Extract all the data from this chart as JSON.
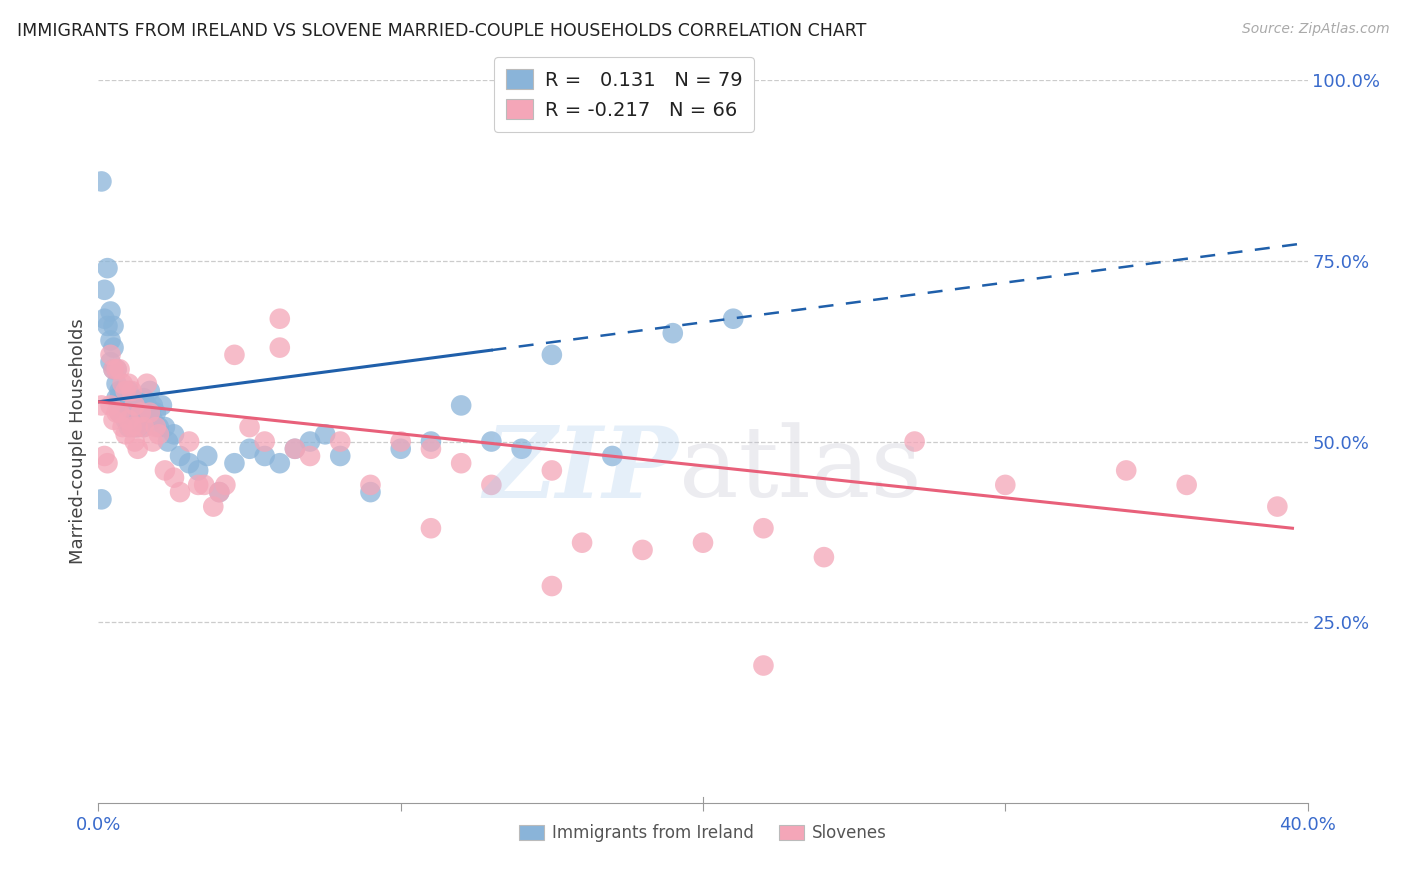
{
  "title": "IMMIGRANTS FROM IRELAND VS SLOVENE MARRIED-COUPLE HOUSEHOLDS CORRELATION CHART",
  "source": "Source: ZipAtlas.com",
  "ylabel": "Married-couple Households",
  "xmin": 0.0,
  "xmax": 0.4,
  "ymin": 0.0,
  "ymax": 1.0,
  "blue_color": "#8ab4d9",
  "pink_color": "#f4a6b8",
  "line_blue": "#1f5faa",
  "line_pink": "#e8607a",
  "legend_label1": "Immigrants from Ireland",
  "legend_label2": "Slovenes",
  "blue_scatter_x": [
    0.001,
    0.002,
    0.002,
    0.003,
    0.003,
    0.004,
    0.004,
    0.004,
    0.005,
    0.005,
    0.005,
    0.006,
    0.006,
    0.006,
    0.007,
    0.007,
    0.007,
    0.008,
    0.008,
    0.008,
    0.008,
    0.009,
    0.009,
    0.009,
    0.009,
    0.01,
    0.01,
    0.01,
    0.01,
    0.011,
    0.011,
    0.011,
    0.012,
    0.012,
    0.012,
    0.013,
    0.013,
    0.013,
    0.014,
    0.014,
    0.015,
    0.015,
    0.015,
    0.016,
    0.016,
    0.017,
    0.017,
    0.018,
    0.018,
    0.019,
    0.02,
    0.021,
    0.022,
    0.023,
    0.025,
    0.027,
    0.03,
    0.033,
    0.036,
    0.04,
    0.045,
    0.05,
    0.055,
    0.06,
    0.065,
    0.07,
    0.075,
    0.08,
    0.09,
    0.1,
    0.11,
    0.12,
    0.13,
    0.14,
    0.15,
    0.17,
    0.19,
    0.21,
    0.001
  ],
  "blue_scatter_y": [
    0.86,
    0.71,
    0.67,
    0.74,
    0.66,
    0.68,
    0.64,
    0.61,
    0.66,
    0.63,
    0.6,
    0.6,
    0.58,
    0.56,
    0.57,
    0.56,
    0.54,
    0.57,
    0.56,
    0.55,
    0.54,
    0.56,
    0.55,
    0.54,
    0.53,
    0.57,
    0.56,
    0.55,
    0.52,
    0.56,
    0.55,
    0.53,
    0.55,
    0.54,
    0.52,
    0.55,
    0.54,
    0.52,
    0.55,
    0.53,
    0.56,
    0.54,
    0.52,
    0.55,
    0.53,
    0.57,
    0.54,
    0.55,
    0.53,
    0.54,
    0.52,
    0.55,
    0.52,
    0.5,
    0.51,
    0.48,
    0.47,
    0.46,
    0.48,
    0.43,
    0.47,
    0.49,
    0.48,
    0.47,
    0.49,
    0.5,
    0.51,
    0.48,
    0.43,
    0.49,
    0.5,
    0.55,
    0.5,
    0.49,
    0.62,
    0.48,
    0.65,
    0.67,
    0.42
  ],
  "pink_scatter_x": [
    0.001,
    0.002,
    0.003,
    0.004,
    0.004,
    0.005,
    0.005,
    0.006,
    0.006,
    0.007,
    0.007,
    0.008,
    0.008,
    0.009,
    0.009,
    0.01,
    0.01,
    0.011,
    0.011,
    0.012,
    0.012,
    0.013,
    0.013,
    0.014,
    0.015,
    0.016,
    0.017,
    0.018,
    0.019,
    0.02,
    0.022,
    0.025,
    0.027,
    0.03,
    0.033,
    0.035,
    0.038,
    0.04,
    0.042,
    0.045,
    0.05,
    0.055,
    0.06,
    0.065,
    0.07,
    0.08,
    0.09,
    0.1,
    0.11,
    0.12,
    0.13,
    0.15,
    0.16,
    0.18,
    0.2,
    0.22,
    0.24,
    0.27,
    0.3,
    0.34,
    0.36,
    0.39,
    0.22,
    0.15,
    0.06,
    0.11
  ],
  "pink_scatter_y": [
    0.55,
    0.48,
    0.47,
    0.62,
    0.55,
    0.6,
    0.53,
    0.6,
    0.54,
    0.6,
    0.54,
    0.58,
    0.52,
    0.57,
    0.51,
    0.58,
    0.53,
    0.57,
    0.52,
    0.55,
    0.5,
    0.52,
    0.49,
    0.54,
    0.52,
    0.58,
    0.54,
    0.5,
    0.52,
    0.51,
    0.46,
    0.45,
    0.43,
    0.5,
    0.44,
    0.44,
    0.41,
    0.43,
    0.44,
    0.62,
    0.52,
    0.5,
    0.63,
    0.49,
    0.48,
    0.5,
    0.44,
    0.5,
    0.49,
    0.47,
    0.44,
    0.46,
    0.36,
    0.35,
    0.36,
    0.38,
    0.34,
    0.5,
    0.44,
    0.46,
    0.44,
    0.41,
    0.19,
    0.3,
    0.67,
    0.38
  ]
}
